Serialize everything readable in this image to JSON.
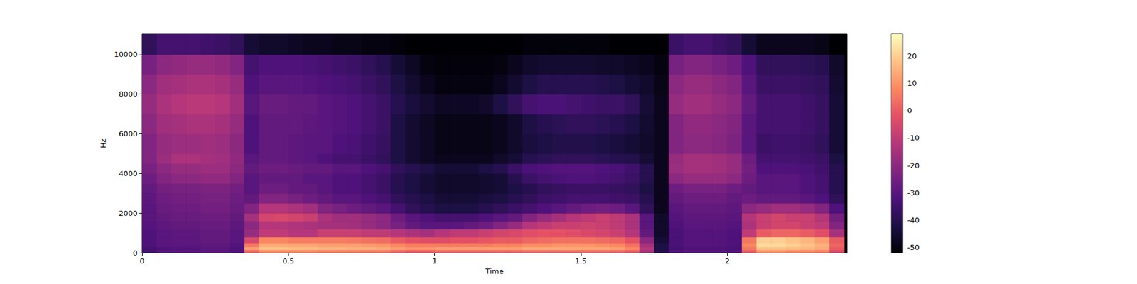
{
  "chart_data": {
    "type": "heatmap",
    "xlabel": "Time",
    "ylabel": "Hz",
    "xlim": [
      0,
      2.41
    ],
    "ylim": [
      0,
      11025
    ],
    "xticks": [
      0,
      0.5,
      1,
      1.5,
      2
    ],
    "yticks": [
      0,
      2000,
      4000,
      6000,
      8000,
      10000
    ],
    "grid": false,
    "time_edges": [
      0,
      0.05,
      0.1,
      0.15,
      0.2,
      0.25,
      0.3,
      0.35,
      0.4,
      0.45,
      0.5,
      0.55,
      0.6,
      0.65,
      0.7,
      0.75,
      0.8,
      0.85,
      0.9,
      0.95,
      1.0,
      1.05,
      1.1,
      1.15,
      1.2,
      1.25,
      1.3,
      1.35,
      1.4,
      1.45,
      1.5,
      1.55,
      1.6,
      1.65,
      1.7,
      1.75,
      1.8,
      1.85,
      1.9,
      1.95,
      2.0,
      2.05,
      2.1,
      2.15,
      2.2,
      2.25,
      2.3,
      2.35,
      2.4
    ],
    "freq_edges": [
      0,
      150,
      300,
      500,
      800,
      1200,
      1600,
      2000,
      2500,
      3000,
      3500,
      4000,
      4500,
      5000,
      6000,
      7000,
      8000,
      9000,
      10000,
      11025
    ],
    "cells": [
      [
        -34,
        -30,
        -30,
        -30,
        -29,
        -29,
        -31,
        2,
        8,
        8,
        8,
        8,
        6,
        6,
        6,
        5,
        5,
        2,
        0,
        0,
        2,
        2,
        2,
        2,
        2,
        2,
        3,
        3,
        3,
        3,
        3,
        3,
        2,
        0,
        -15,
        -40,
        -32,
        -30,
        -30,
        -30,
        -31,
        0,
        10,
        10,
        8,
        8,
        6,
        -5
      ],
      [
        -34,
        -32,
        -31,
        -31,
        -30,
        -30,
        -32,
        12,
        18,
        18,
        17,
        17,
        16,
        16,
        15,
        15,
        14,
        12,
        10,
        10,
        12,
        12,
        12,
        12,
        12,
        12,
        14,
        14,
        14,
        14,
        13,
        13,
        12,
        8,
        -12,
        -42,
        -34,
        -32,
        -32,
        -32,
        -33,
        5,
        18,
        18,
        17,
        16,
        14,
        0
      ],
      [
        -32,
        -30,
        -30,
        -30,
        -29,
        -29,
        -31,
        5,
        14,
        14,
        13,
        13,
        12,
        12,
        12,
        11,
        10,
        8,
        6,
        6,
        6,
        6,
        6,
        6,
        7,
        7,
        9,
        9,
        10,
        10,
        10,
        9,
        8,
        4,
        -15,
        -42,
        -33,
        -31,
        -31,
        -31,
        -32,
        8,
        22,
        22,
        20,
        18,
        15,
        2
      ],
      [
        -32,
        -30,
        -29,
        -29,
        -28,
        -28,
        -30,
        -5,
        8,
        8,
        6,
        6,
        6,
        6,
        5,
        4,
        3,
        0,
        -2,
        -3,
        -3,
        -2,
        -2,
        -1,
        0,
        0,
        2,
        3,
        4,
        4,
        4,
        3,
        2,
        -2,
        -20,
        -44,
        -33,
        -31,
        -31,
        -31,
        -32,
        5,
        20,
        20,
        18,
        16,
        12,
        0
      ],
      [
        -32,
        -30,
        -29,
        -29,
        -28,
        -28,
        -30,
        -18,
        -10,
        -10,
        -12,
        -12,
        -8,
        -8,
        -8,
        -10,
        -10,
        -12,
        -14,
        -15,
        -12,
        -10,
        -10,
        -8,
        -6,
        -5,
        -3,
        -2,
        -2,
        -3,
        -5,
        -6,
        -8,
        -12,
        -28,
        -46,
        -33,
        -31,
        -31,
        -31,
        -32,
        -10,
        0,
        2,
        2,
        0,
        -3,
        -15
      ],
      [
        -31,
        -29,
        -28,
        -28,
        -27,
        -27,
        -29,
        -20,
        -12,
        -12,
        -13,
        -14,
        -15,
        -15,
        -16,
        -18,
        -20,
        -24,
        -28,
        -30,
        -30,
        -30,
        -28,
        -26,
        -22,
        -18,
        -12,
        -10,
        -8,
        -8,
        -7,
        -8,
        -10,
        -14,
        -30,
        -46,
        -32,
        -30,
        -30,
        -30,
        -31,
        -14,
        -8,
        -6,
        -6,
        -8,
        -10,
        -22
      ],
      [
        -30,
        -28,
        -27,
        -27,
        -26,
        -26,
        -28,
        -15,
        -6,
        -5,
        -6,
        -8,
        -14,
        -16,
        -16,
        -18,
        -20,
        -26,
        -30,
        -32,
        -34,
        -34,
        -34,
        -32,
        -30,
        -28,
        -22,
        -18,
        -15,
        -12,
        -10,
        -8,
        -10,
        -14,
        -30,
        -46,
        -31,
        -29,
        -29,
        -29,
        -30,
        -12,
        -8,
        -6,
        -8,
        -8,
        -12,
        -25
      ],
      [
        -30,
        -27,
        -26,
        -26,
        -25,
        -25,
        -27,
        -22,
        -12,
        -12,
        -14,
        -16,
        -22,
        -24,
        -26,
        -28,
        -30,
        -34,
        -38,
        -40,
        -42,
        -42,
        -42,
        -40,
        -38,
        -36,
        -34,
        -32,
        -30,
        -28,
        -26,
        -25,
        -26,
        -30,
        -38,
        -48,
        -30,
        -28,
        -28,
        -28,
        -29,
        -20,
        -18,
        -16,
        -16,
        -18,
        -22,
        -32
      ],
      [
        -29,
        -26,
        -25,
        -25,
        -24,
        -24,
        -26,
        -28,
        -22,
        -22,
        -24,
        -26,
        -28,
        -30,
        -30,
        -32,
        -34,
        -38,
        -40,
        -42,
        -44,
        -44,
        -44,
        -43,
        -42,
        -40,
        -38,
        -36,
        -35,
        -34,
        -34,
        -34,
        -35,
        -36,
        -40,
        -48,
        -28,
        -26,
        -26,
        -26,
        -28,
        -26,
        -28,
        -28,
        -28,
        -30,
        -32,
        -38
      ],
      [
        -28,
        -25,
        -24,
        -24,
        -23,
        -23,
        -25,
        -30,
        -26,
        -26,
        -28,
        -28,
        -30,
        -32,
        -32,
        -34,
        -36,
        -40,
        -42,
        -44,
        -46,
        -46,
        -46,
        -45,
        -44,
        -42,
        -40,
        -38,
        -37,
        -36,
        -36,
        -36,
        -37,
        -38,
        -42,
        -48,
        -26,
        -24,
        -24,
        -24,
        -26,
        -28,
        -30,
        -30,
        -30,
        -32,
        -34,
        -40
      ],
      [
        -26,
        -22,
        -20,
        -20,
        -19,
        -19,
        -22,
        -30,
        -28,
        -28,
        -28,
        -30,
        -30,
        -32,
        -32,
        -34,
        -36,
        -40,
        -42,
        -44,
        -46,
        -46,
        -46,
        -45,
        -44,
        -40,
        -36,
        -34,
        -33,
        -32,
        -32,
        -33,
        -34,
        -36,
        -40,
        -48,
        -20,
        -18,
        -18,
        -18,
        -20,
        -26,
        -30,
        -30,
        -30,
        -32,
        -34,
        -40
      ],
      [
        -24,
        -20,
        -18,
        -18,
        -17,
        -17,
        -20,
        -28,
        -26,
        -26,
        -27,
        -28,
        -28,
        -30,
        -30,
        -32,
        -34,
        -38,
        -40,
        -42,
        -44,
        -44,
        -44,
        -42,
        -40,
        -36,
        -33,
        -32,
        -31,
        -31,
        -31,
        -32,
        -33,
        -35,
        -40,
        -48,
        -17,
        -15,
        -15,
        -16,
        -18,
        -25,
        -32,
        -32,
        -32,
        -33,
        -35,
        -40
      ],
      [
        -22,
        -17,
        -14,
        -14,
        -15,
        -16,
        -19,
        -30,
        -28,
        -28,
        -29,
        -30,
        -32,
        -34,
        -34,
        -36,
        -38,
        -42,
        -45,
        -47,
        -48,
        -48,
        -48,
        -48,
        -46,
        -44,
        -40,
        -39,
        -38,
        -38,
        -38,
        -39,
        -40,
        -41,
        -44,
        -48,
        -18,
        -15,
        -15,
        -16,
        -18,
        -26,
        -34,
        -34,
        -34,
        -35,
        -36,
        -42
      ],
      [
        -22,
        -18,
        -17,
        -17,
        -16,
        -17,
        -20,
        -32,
        -28,
        -28,
        -29,
        -30,
        -30,
        -32,
        -33,
        -35,
        -37,
        -42,
        -45,
        -47,
        -49,
        -49,
        -49,
        -49,
        -48,
        -46,
        -43,
        -42,
        -41,
        -41,
        -41,
        -42,
        -43,
        -44,
        -46,
        -48,
        -22,
        -20,
        -20,
        -21,
        -23,
        -30,
        -36,
        -35,
        -35,
        -36,
        -38,
        -44
      ],
      [
        -20,
        -16,
        -15,
        -14,
        -14,
        -15,
        -18,
        -32,
        -28,
        -28,
        -28,
        -29,
        -30,
        -31,
        -32,
        -34,
        -36,
        -42,
        -45,
        -47,
        -49,
        -49,
        -49,
        -49,
        -48,
        -46,
        -42,
        -40,
        -39,
        -38,
        -38,
        -39,
        -40,
        -42,
        -45,
        -48,
        -22,
        -19,
        -19,
        -20,
        -22,
        -30,
        -34,
        -34,
        -34,
        -35,
        -37,
        -44
      ],
      [
        -18,
        -14,
        -12,
        -11,
        -11,
        -12,
        -16,
        -30,
        -27,
        -27,
        -28,
        -28,
        -30,
        -31,
        -32,
        -34,
        -36,
        -40,
        -43,
        -45,
        -47,
        -47,
        -47,
        -46,
        -42,
        -38,
        -34,
        -33,
        -33,
        -34,
        -35,
        -36,
        -36,
        -38,
        -44,
        -48,
        -18,
        -16,
        -16,
        -18,
        -20,
        -28,
        -34,
        -34,
        -34,
        -35,
        -37,
        -44
      ],
      [
        -20,
        -16,
        -15,
        -14,
        -14,
        -15,
        -18,
        -32,
        -30,
        -30,
        -30,
        -31,
        -32,
        -33,
        -34,
        -36,
        -38,
        -42,
        -45,
        -48,
        -50,
        -50,
        -50,
        -50,
        -48,
        -45,
        -42,
        -40,
        -40,
        -40,
        -40,
        -41,
        -42,
        -44,
        -46,
        -49,
        -20,
        -18,
        -18,
        -20,
        -22,
        -30,
        -36,
        -36,
        -36,
        -37,
        -38,
        -45
      ],
      [
        -24,
        -20,
        -19,
        -18,
        -18,
        -19,
        -22,
        -34,
        -32,
        -32,
        -32,
        -33,
        -34,
        -35,
        -36,
        -38,
        -40,
        -44,
        -47,
        -50,
        -51,
        -51,
        -51,
        -51,
        -50,
        -48,
        -46,
        -45,
        -45,
        -45,
        -45,
        -46,
        -46,
        -47,
        -48,
        -50,
        -24,
        -22,
        -22,
        -24,
        -26,
        -32,
        -38,
        -38,
        -38,
        -39,
        -40,
        -46
      ],
      [
        -38,
        -34,
        -34,
        -34,
        -35,
        -36,
        -38,
        -44,
        -46,
        -46,
        -47,
        -48,
        -48,
        -49,
        -49,
        -50,
        -50,
        -51,
        -52,
        -52,
        -52,
        -52,
        -52,
        -52,
        -52,
        -52,
        -51,
        -51,
        -51,
        -51,
        -51,
        -51,
        -52,
        -52,
        -52,
        -52,
        -36,
        -34,
        -34,
        -36,
        -38,
        -44,
        -48,
        -48,
        -48,
        -48,
        -49,
        -52
      ]
    ],
    "colorbar": {
      "range": [
        -52,
        28
      ],
      "ticks": [
        -50,
        -40,
        -30,
        -20,
        -10,
        0,
        10,
        20
      ]
    }
  }
}
